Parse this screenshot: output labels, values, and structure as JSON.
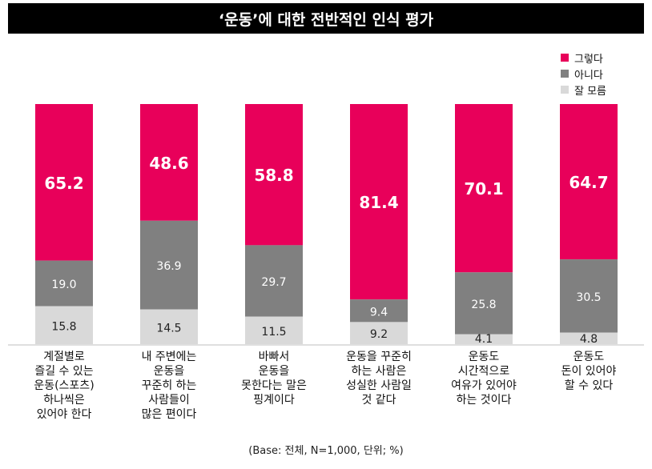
{
  "chart_data": {
    "type": "bar",
    "stacked": true,
    "title": "‘운동’에 대한 전반적인 인식 평가",
    "categories": [
      "계절별로\n즐길 수 있는\n운동(스포츠)\n하나씩은\n있어야 한다",
      "내 주변에는\n운동을\n꾸준히 하는\n사람들이\n많은 편이다",
      "바빠서\n운동을\n못한다는 말은\n핑계이다",
      "운동을 꾸준히\n하는 사람은\n성실한 사람일\n것 같다",
      "운동도\n시간적으로\n여유가 있어야\n하는 것이다",
      "운동도\n돈이 있어야\n할 수 있다"
    ],
    "series": [
      {
        "name": "그렇다",
        "color": "#E8005A",
        "values": [
          "65.2",
          "48.6",
          "58.8",
          "81.4",
          "70.1",
          "64.7"
        ]
      },
      {
        "name": "아니다",
        "color": "#808080",
        "values": [
          "19.0",
          "36.9",
          "29.7",
          "9.4",
          "25.8",
          "30.5"
        ]
      },
      {
        "name": "잘 모름",
        "color": "#D9D9D9",
        "values": [
          "15.8",
          "14.5",
          "11.5",
          "9.2",
          "4.1",
          "4.8"
        ]
      }
    ],
    "ylim": [
      0,
      100
    ],
    "legend_position": "top-right",
    "footnote": "(Base: 전체, N=1,000, 단위; %)"
  }
}
